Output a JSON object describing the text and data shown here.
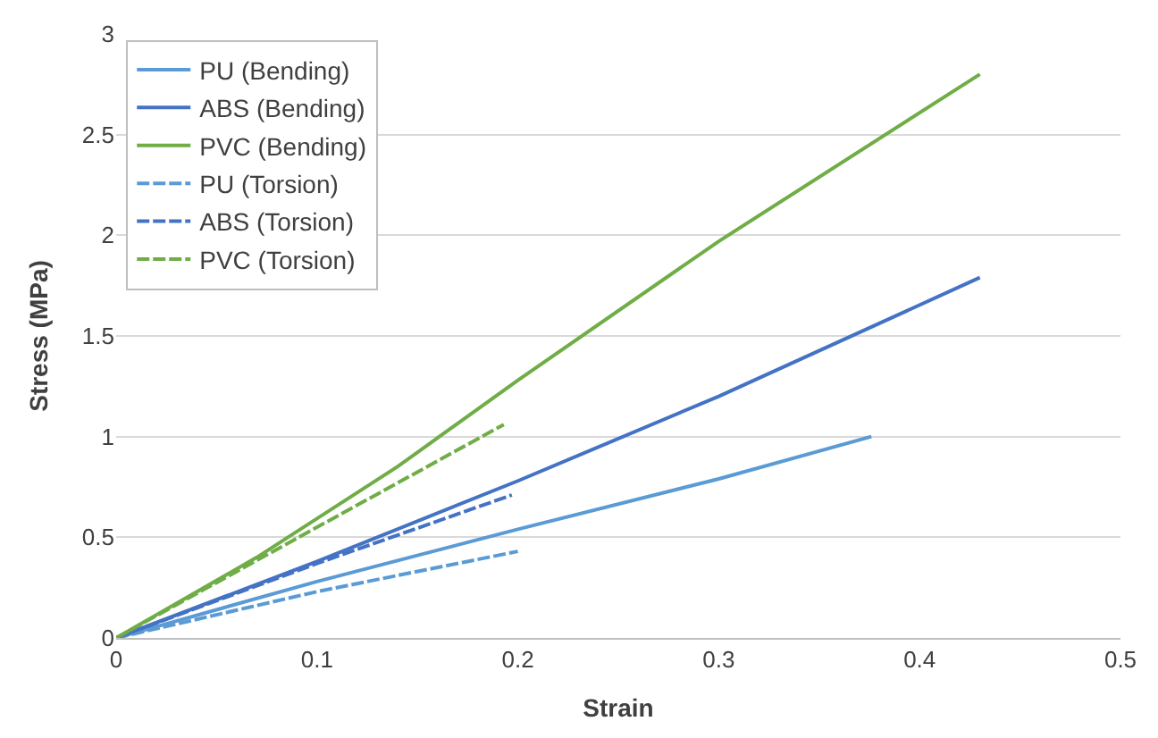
{
  "chart_data": {
    "type": "line",
    "xlabel": "Strain",
    "ylabel": "Stress (MPa)",
    "xlim": [
      0,
      0.5
    ],
    "xticks": [
      0,
      0.1,
      0.2,
      0.3,
      0.4,
      0.5
    ],
    "ylim": [
      0,
      3
    ],
    "yticks": [
      0,
      0.5,
      1,
      1.5,
      2,
      2.5,
      3
    ],
    "grid": "y",
    "legend": "top left",
    "marker": "none",
    "series": [
      {
        "name": "PU (Bending)",
        "color": "#5b9bd5",
        "line_style": "solid",
        "x": [
          0,
          0.1,
          0.2,
          0.3,
          0.376
        ],
        "values": [
          0,
          0.28,
          0.54,
          0.79,
          1.0
        ]
      },
      {
        "name": "ABS (Bending)",
        "color": "#4472c4",
        "line_style": "solid",
        "x": [
          0,
          0.1,
          0.2,
          0.3,
          0.43
        ],
        "values": [
          0,
          0.38,
          0.78,
          1.2,
          1.79
        ]
      },
      {
        "name": "PVC (Bending)",
        "color": "#70ad47",
        "line_style": "solid",
        "x": [
          0,
          0.07,
          0.14,
          0.2,
          0.3,
          0.43
        ],
        "values": [
          0,
          0.4,
          0.85,
          1.28,
          1.97,
          2.8
        ]
      },
      {
        "name": "PU (Torsion)",
        "color": "#5b9bd5",
        "line_style": "dashed",
        "x": [
          0,
          0.1,
          0.2
        ],
        "values": [
          0,
          0.23,
          0.43
        ]
      },
      {
        "name": "ABS (Torsion)",
        "color": "#4472c4",
        "line_style": "dashed",
        "x": [
          0,
          0.1,
          0.197
        ],
        "values": [
          0,
          0.37,
          0.71
        ]
      },
      {
        "name": "PVC (Torsion)",
        "color": "#70ad47",
        "line_style": "dashed",
        "x": [
          0,
          0.1,
          0.193
        ],
        "values": [
          0,
          0.55,
          1.06
        ]
      }
    ]
  }
}
